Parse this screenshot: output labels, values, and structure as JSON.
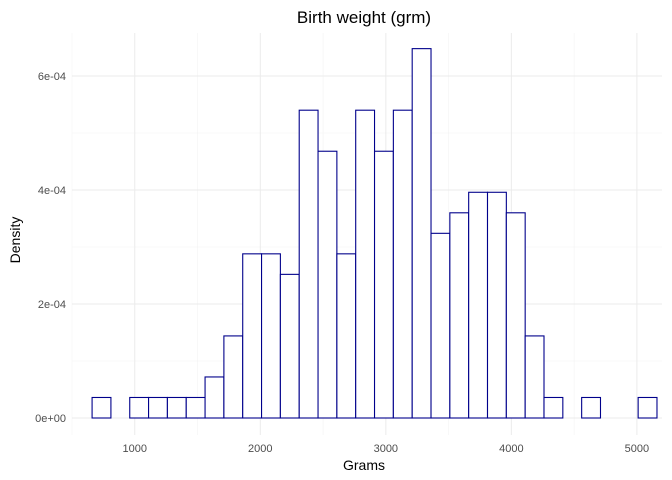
{
  "chart_data": {
    "type": "bar",
    "title": "Birth weight (grm)",
    "xlabel": "Grams",
    "ylabel": "Density",
    "xlim": [
      500,
      5200
    ],
    "ylim": [
      0,
      0.00068
    ],
    "x_ticks": [
      1000,
      2000,
      3000,
      4000,
      5000
    ],
    "x_tick_labels": [
      "1000",
      "2000",
      "3000",
      "4000",
      "5000"
    ],
    "y_ticks": [
      0,
      0.0002,
      0.0004,
      0.0006
    ],
    "y_tick_labels": [
      "0e+00",
      "2e-04",
      "4e-04",
      "6e-04"
    ],
    "grid": true,
    "bin_width": 150,
    "bins": [
      {
        "start": 660,
        "density": 3.6e-05
      },
      {
        "start": 810,
        "density": 0
      },
      {
        "start": 960,
        "density": 3.6e-05
      },
      {
        "start": 1110,
        "density": 3.6e-05
      },
      {
        "start": 1260,
        "density": 3.6e-05
      },
      {
        "start": 1410,
        "density": 3.6e-05
      },
      {
        "start": 1560,
        "density": 7.2e-05
      },
      {
        "start": 1710,
        "density": 0.000144
      },
      {
        "start": 1860,
        "density": 0.000288
      },
      {
        "start": 2010,
        "density": 0.000288
      },
      {
        "start": 2160,
        "density": 0.000252
      },
      {
        "start": 2310,
        "density": 0.00054
      },
      {
        "start": 2460,
        "density": 0.000468
      },
      {
        "start": 2610,
        "density": 0.000288
      },
      {
        "start": 2760,
        "density": 0.00054
      },
      {
        "start": 2910,
        "density": 0.000468
      },
      {
        "start": 3060,
        "density": 0.00054
      },
      {
        "start": 3210,
        "density": 0.000648
      },
      {
        "start": 3360,
        "density": 0.000324
      },
      {
        "start": 3510,
        "density": 0.00036
      },
      {
        "start": 3660,
        "density": 0.000396
      },
      {
        "start": 3810,
        "density": 0.000396
      },
      {
        "start": 3960,
        "density": 0.00036
      },
      {
        "start": 4110,
        "density": 0.000144
      },
      {
        "start": 4260,
        "density": 3.6e-05
      },
      {
        "start": 4410,
        "density": 0
      },
      {
        "start": 4560,
        "density": 3.6e-05
      },
      {
        "start": 4710,
        "density": 0
      },
      {
        "start": 4860,
        "density": 0
      },
      {
        "start": 5010,
        "density": 3.6e-05
      }
    ],
    "colors": {
      "bar_outline": "#00008b",
      "bar_fill": "#ffffff",
      "grid": "#ebebeb"
    }
  }
}
